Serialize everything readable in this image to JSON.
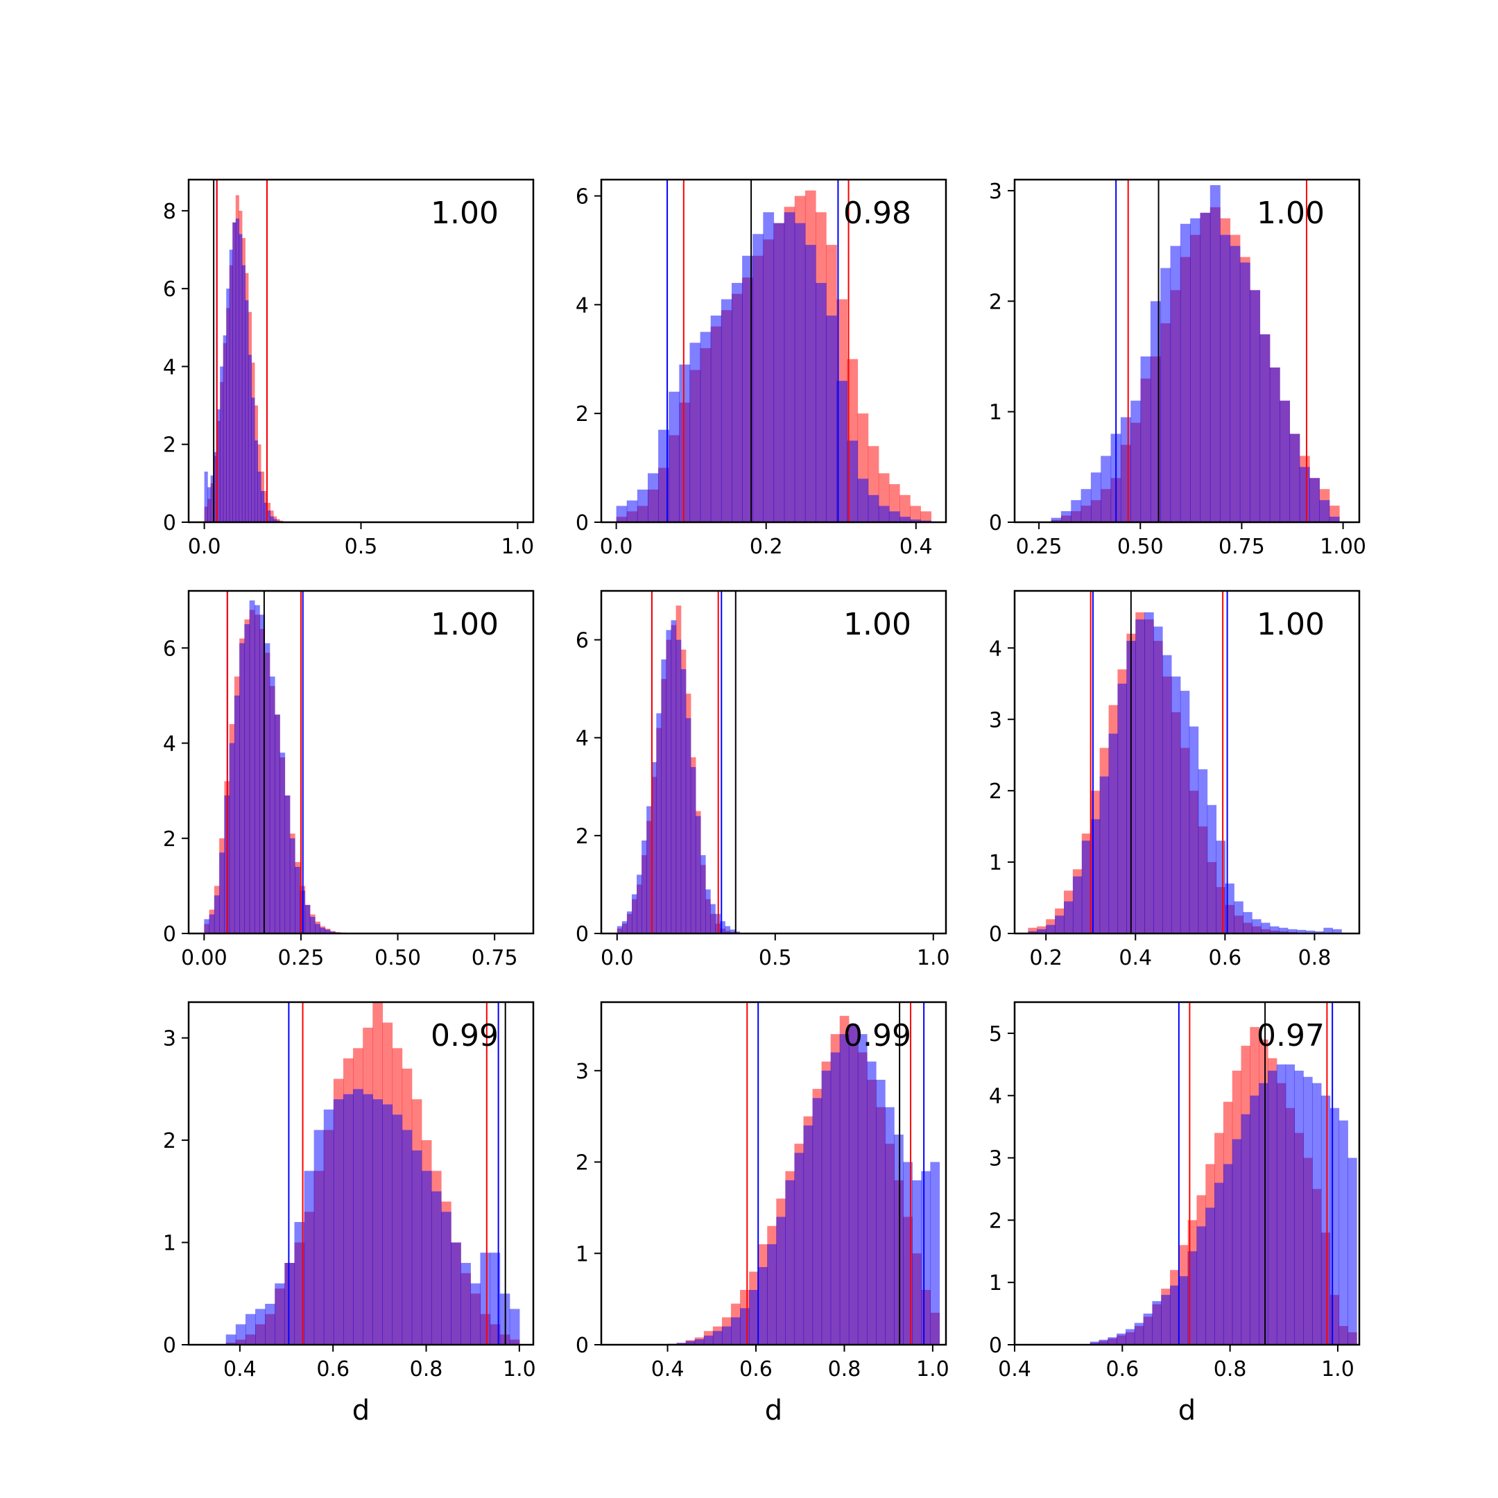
{
  "colors": {
    "hist_a": "#ff0000",
    "hist_b": "#0000ff",
    "overlap": "#7f3fbf",
    "line_red": "#ff0000",
    "line_blue": "#0000ff",
    "line_black": "#000000"
  },
  "chart_data": [
    {
      "type": "histogram",
      "annotation": "1.00",
      "xlabel": "",
      "xlim": [
        -0.05,
        1.05
      ],
      "ylim": [
        0,
        8.8
      ],
      "xticks": [
        0.0,
        0.5,
        1.0
      ],
      "xtick_labels": [
        "0.0",
        "0.5",
        "1.0"
      ],
      "yticks": [
        0,
        2,
        4,
        6,
        8
      ],
      "ytick_labels": [
        "0",
        "2",
        "4",
        "6",
        "8"
      ],
      "vlines": {
        "red": [
          0.04,
          0.2
        ],
        "blue": [
          0.04,
          0.2
        ],
        "black": [
          0.03
        ]
      },
      "bin_start": 0.0,
      "bin_width": 0.01,
      "series": [
        {
          "color": "red",
          "values": [
            0.4,
            0.6,
            1.0,
            1.7,
            2.6,
            3.6,
            4.6,
            5.5,
            6.6,
            7.7,
            8.4,
            8.0,
            7.3,
            6.4,
            5.4,
            4.1,
            3.0,
            2.0,
            1.3,
            0.8,
            0.5,
            0.3,
            0.15,
            0.08,
            0.04
          ]
        },
        {
          "color": "blue",
          "values": [
            1.3,
            0.9,
            1.2,
            1.8,
            2.9,
            4.0,
            4.8,
            6.0,
            7.0,
            7.7,
            7.8,
            7.4,
            6.6,
            5.7,
            4.3,
            3.2,
            2.1,
            1.3,
            0.8,
            0.5,
            0.3,
            0.15,
            0.08,
            0.04,
            0.02
          ]
        }
      ]
    },
    {
      "type": "histogram",
      "annotation": "0.98",
      "xlabel": "",
      "xlim": [
        -0.02,
        0.44
      ],
      "ylim": [
        0,
        6.3
      ],
      "xticks": [
        0.0,
        0.2,
        0.4
      ],
      "xtick_labels": [
        "0.0",
        "0.2",
        "0.4"
      ],
      "yticks": [
        0,
        2,
        4,
        6
      ],
      "ytick_labels": [
        "0",
        "2",
        "4",
        "6"
      ],
      "vlines": {
        "red": [
          0.09,
          0.31
        ],
        "blue": [
          0.068,
          0.296
        ],
        "black": [
          0.18
        ]
      },
      "bin_start": 0.0,
      "bin_width": 0.014,
      "series": [
        {
          "color": "red",
          "values": [
            0.1,
            0.2,
            0.3,
            0.6,
            1.0,
            1.6,
            2.2,
            2.8,
            3.2,
            3.6,
            3.9,
            4.2,
            4.5,
            4.9,
            5.2,
            5.5,
            5.8,
            6.0,
            6.1,
            5.7,
            5.1,
            4.1,
            3.0,
            2.0,
            1.4,
            0.9,
            0.7,
            0.5,
            0.3,
            0.2
          ]
        },
        {
          "color": "blue",
          "values": [
            0.3,
            0.4,
            0.6,
            0.9,
            1.7,
            2.4,
            2.9,
            3.3,
            3.5,
            3.8,
            4.1,
            4.4,
            4.9,
            5.3,
            5.7,
            5.5,
            5.7,
            5.5,
            5.1,
            4.4,
            3.8,
            2.6,
            1.5,
            0.8,
            0.5,
            0.3,
            0.2,
            0.1,
            0.05,
            0.03
          ]
        }
      ]
    },
    {
      "type": "histogram",
      "annotation": "1.00",
      "xlabel": "",
      "xlim": [
        0.19,
        1.04
      ],
      "ylim": [
        0,
        3.1
      ],
      "xticks": [
        0.25,
        0.5,
        0.75,
        1.0
      ],
      "xtick_labels": [
        "0.25",
        "0.50",
        "0.75",
        "1.00"
      ],
      "yticks": [
        0,
        1,
        2,
        3
      ],
      "ytick_labels": [
        "0",
        "1",
        "2",
        "3"
      ],
      "vlines": {
        "red": [
          0.47,
          0.91
        ],
        "blue": [
          0.44,
          0.91
        ],
        "black": [
          0.545
        ]
      },
      "bin_start": 0.28,
      "bin_width": 0.0245,
      "series": [
        {
          "color": "red",
          "values": [
            0.02,
            0.06,
            0.1,
            0.15,
            0.2,
            0.3,
            0.4,
            0.7,
            0.9,
            1.3,
            1.5,
            1.8,
            2.1,
            2.4,
            2.6,
            2.8,
            2.85,
            2.75,
            2.6,
            2.4,
            2.1,
            1.7,
            1.4,
            1.1,
            0.8,
            0.6,
            0.4,
            0.3,
            0.15
          ]
        },
        {
          "color": "blue",
          "values": [
            0.04,
            0.1,
            0.2,
            0.3,
            0.45,
            0.6,
            0.8,
            0.95,
            1.1,
            1.5,
            2.0,
            2.3,
            2.5,
            2.7,
            2.75,
            2.8,
            3.05,
            2.6,
            2.5,
            2.35,
            2.1,
            1.7,
            1.4,
            1.1,
            0.8,
            0.5,
            0.4,
            0.2,
            0.05
          ]
        }
      ]
    },
    {
      "type": "histogram",
      "annotation": "1.00",
      "xlabel": "",
      "xlim": [
        -0.04,
        0.85
      ],
      "ylim": [
        0,
        7.2
      ],
      "xticks": [
        0.0,
        0.25,
        0.5,
        0.75
      ],
      "xtick_labels": [
        "0.00",
        "0.25",
        "0.50",
        "0.75"
      ],
      "yticks": [
        0,
        2,
        4,
        6
      ],
      "ytick_labels": [
        "0",
        "2",
        "4",
        "6"
      ],
      "vlines": {
        "red": [
          0.06,
          0.25
        ],
        "blue": [
          0.06,
          0.255
        ],
        "black": [
          0.155
        ]
      },
      "bin_start": 0.0,
      "bin_width": 0.013,
      "series": [
        {
          "color": "red",
          "values": [
            0.2,
            0.5,
            1.0,
            2.0,
            3.2,
            4.4,
            5.4,
            6.2,
            6.6,
            6.8,
            6.7,
            6.4,
            5.9,
            5.2,
            4.6,
            3.7,
            2.9,
            2.1,
            1.5,
            1.0,
            0.6,
            0.4,
            0.25,
            0.15,
            0.1,
            0.05,
            0.03,
            0.02
          ]
        },
        {
          "color": "blue",
          "values": [
            0.3,
            0.4,
            0.8,
            1.7,
            2.9,
            4.0,
            5.0,
            6.1,
            6.5,
            7.0,
            6.9,
            6.7,
            6.1,
            5.4,
            4.6,
            3.8,
            2.9,
            2.0,
            1.4,
            0.9,
            0.6,
            0.35,
            0.2,
            0.12,
            0.08,
            0.04,
            0.02,
            0.01
          ]
        }
      ]
    },
    {
      "type": "histogram",
      "annotation": "1.00",
      "xlabel": "",
      "xlim": [
        -0.05,
        1.04
      ],
      "ylim": [
        0,
        7.0
      ],
      "xticks": [
        0.0,
        0.5,
        1.0
      ],
      "xtick_labels": [
        "0.0",
        "0.5",
        "1.0"
      ],
      "vlines": {
        "red": [
          0.11,
          0.32
        ],
        "blue": [
          0.11,
          0.33
        ],
        "black": [
          0.375
        ]
      },
      "yticks": [
        0,
        2,
        4,
        6
      ],
      "ytick_labels": [
        "0",
        "2",
        "4",
        "6"
      ],
      "bin_start": 0.0,
      "bin_width": 0.0155,
      "series": [
        {
          "color": "red",
          "values": [
            0.1,
            0.2,
            0.4,
            0.7,
            1.0,
            1.6,
            2.3,
            3.2,
            4.2,
            5.2,
            6.0,
            6.3,
            6.7,
            5.8,
            4.9,
            3.6,
            2.5,
            1.4,
            0.7,
            0.4,
            0.2,
            0.1,
            0.05,
            0.03,
            0.02
          ]
        },
        {
          "color": "blue",
          "values": [
            0.15,
            0.25,
            0.45,
            0.8,
            1.2,
            1.9,
            2.6,
            3.5,
            4.5,
            5.6,
            6.2,
            6.4,
            6.0,
            5.4,
            4.4,
            3.4,
            2.4,
            1.6,
            0.9,
            0.6,
            0.4,
            0.25,
            0.15,
            0.08,
            0.04
          ]
        }
      ]
    },
    {
      "type": "histogram",
      "annotation": "1.00",
      "xlabel": "",
      "xlim": [
        0.13,
        0.9
      ],
      "ylim": [
        0,
        4.8
      ],
      "xticks": [
        0.2,
        0.4,
        0.6,
        0.8
      ],
      "xtick_labels": [
        "0.2",
        "0.4",
        "0.6",
        "0.8"
      ],
      "yticks": [
        0,
        1,
        2,
        3,
        4
      ],
      "ytick_labels": [
        "0",
        "1",
        "2",
        "3",
        "4"
      ],
      "vlines": {
        "red": [
          0.3,
          0.595
        ],
        "blue": [
          0.305,
          0.605
        ],
        "black": [
          0.39
        ]
      },
      "bin_start": 0.16,
      "bin_width": 0.02,
      "series": [
        {
          "color": "red",
          "values": [
            0.08,
            0.1,
            0.2,
            0.35,
            0.6,
            0.9,
            1.4,
            2.0,
            2.6,
            3.2,
            3.7,
            4.2,
            4.5,
            4.4,
            4.1,
            3.6,
            3.1,
            2.6,
            2.0,
            1.5,
            1.0,
            0.65,
            0.4,
            0.25,
            0.15,
            0.1,
            0.06,
            0.04,
            0.03,
            0.02,
            0.01,
            0.01,
            0.01,
            0.01,
            0.01
          ]
        },
        {
          "color": "blue",
          "values": [
            0.03,
            0.06,
            0.12,
            0.25,
            0.45,
            0.8,
            1.3,
            1.6,
            2.2,
            2.8,
            3.5,
            4.1,
            4.4,
            4.5,
            4.3,
            3.9,
            3.6,
            3.4,
            2.9,
            2.3,
            1.8,
            1.3,
            0.7,
            0.45,
            0.3,
            0.2,
            0.15,
            0.1,
            0.08,
            0.06,
            0.05,
            0.04,
            0.03,
            0.08,
            0.06
          ]
        }
      ]
    },
    {
      "type": "histogram",
      "annotation": "0.99",
      "xlabel": "d",
      "xlim": [
        0.29,
        1.03
      ],
      "ylim": [
        0,
        3.35
      ],
      "xticks": [
        0.4,
        0.6,
        0.8,
        1.0
      ],
      "xtick_labels": [
        "0.4",
        "0.6",
        "0.8",
        "1.0"
      ],
      "yticks": [
        0,
        1,
        2,
        3
      ],
      "ytick_labels": [
        "0",
        "1",
        "2",
        "3"
      ],
      "vlines": {
        "red": [
          0.535,
          0.93
        ],
        "blue": [
          0.505,
          0.955
        ],
        "black": [
          0.97
        ]
      },
      "bin_start": 0.37,
      "bin_width": 0.021,
      "series": [
        {
          "color": "red",
          "values": [
            0.02,
            0.05,
            0.1,
            0.2,
            0.3,
            0.55,
            0.8,
            1.0,
            1.3,
            1.7,
            2.1,
            2.6,
            2.8,
            2.9,
            3.1,
            3.4,
            3.15,
            2.9,
            2.7,
            2.4,
            2.0,
            1.7,
            1.4,
            1.0,
            0.7,
            0.5,
            0.3,
            0.2,
            0.1,
            0.05
          ]
        },
        {
          "color": "blue",
          "values": [
            0.1,
            0.2,
            0.3,
            0.35,
            0.4,
            0.6,
            0.8,
            1.2,
            1.7,
            2.1,
            2.3,
            2.4,
            2.45,
            2.5,
            2.45,
            2.4,
            2.35,
            2.25,
            2.1,
            1.9,
            1.7,
            1.5,
            1.3,
            1.0,
            0.8,
            0.6,
            0.9,
            0.9,
            0.5,
            0.35
          ]
        }
      ]
    },
    {
      "type": "histogram",
      "annotation": "0.99",
      "xlabel": "d",
      "xlim": [
        0.25,
        1.03
      ],
      "ylim": [
        0,
        3.75
      ],
      "xticks": [
        0.4,
        0.6,
        0.8,
        1.0
      ],
      "xtick_labels": [
        "0.4",
        "0.6",
        "0.8",
        "1.0"
      ],
      "yticks": [
        0,
        1,
        2,
        3
      ],
      "ytick_labels": [
        "0",
        "1",
        "2",
        "3"
      ],
      "vlines": {
        "red": [
          0.58,
          0.95
        ],
        "blue": [
          0.605,
          0.98
        ],
        "black": [
          0.925
        ]
      },
      "bin_start": 0.4,
      "bin_width": 0.0205,
      "series": [
        {
          "color": "red",
          "values": [
            0.01,
            0.02,
            0.05,
            0.08,
            0.15,
            0.2,
            0.3,
            0.45,
            0.6,
            0.8,
            1.1,
            1.3,
            1.6,
            1.9,
            2.2,
            2.5,
            2.8,
            3.1,
            3.4,
            3.6,
            3.5,
            3.2,
            2.9,
            2.6,
            2.2,
            1.8,
            1.4,
            1.0,
            0.6,
            0.35
          ]
        },
        {
          "color": "blue",
          "values": [
            0.01,
            0.02,
            0.04,
            0.06,
            0.1,
            0.15,
            0.2,
            0.3,
            0.4,
            0.6,
            0.85,
            1.1,
            1.4,
            1.8,
            2.1,
            2.4,
            2.7,
            3.0,
            3.2,
            3.4,
            3.5,
            3.4,
            3.1,
            2.9,
            2.6,
            2.3,
            2.0,
            1.8,
            1.9,
            2.0
          ]
        }
      ]
    },
    {
      "type": "histogram",
      "annotation": "0.97",
      "xlabel": "d",
      "xlim": [
        0.4,
        1.04
      ],
      "ylim": [
        0,
        5.5
      ],
      "xticks": [
        0.4,
        0.6,
        0.8,
        1.0
      ],
      "xtick_labels": [
        "0.4",
        "0.6",
        "0.8",
        "1.0"
      ],
      "yticks": [
        0,
        1,
        2,
        3,
        4,
        5
      ],
      "ytick_labels": [
        "0",
        "1",
        "2",
        "3",
        "4",
        "5"
      ],
      "vlines": {
        "red": [
          0.725,
          0.98
        ],
        "blue": [
          0.705,
          0.99
        ],
        "black": [
          0.865
        ]
      },
      "bin_start": 0.54,
      "bin_width": 0.0165,
      "series": [
        {
          "color": "red",
          "values": [
            0.03,
            0.06,
            0.1,
            0.15,
            0.2,
            0.3,
            0.45,
            0.65,
            0.9,
            1.2,
            1.6,
            2.0,
            2.4,
            2.9,
            3.4,
            3.9,
            4.4,
            4.8,
            5.1,
            4.9,
            4.6,
            4.2,
            3.8,
            3.4,
            3.0,
            2.5,
            1.8,
            0.8,
            0.3,
            0.2
          ]
        },
        {
          "color": "blue",
          "values": [
            0.05,
            0.08,
            0.12,
            0.18,
            0.25,
            0.35,
            0.5,
            0.7,
            0.8,
            0.95,
            1.1,
            1.5,
            1.9,
            2.2,
            2.6,
            2.9,
            3.3,
            3.7,
            4.0,
            4.2,
            4.4,
            4.5,
            4.5,
            4.4,
            4.3,
            4.2,
            4.0,
            3.8,
            3.6,
            3.0
          ]
        }
      ]
    }
  ]
}
